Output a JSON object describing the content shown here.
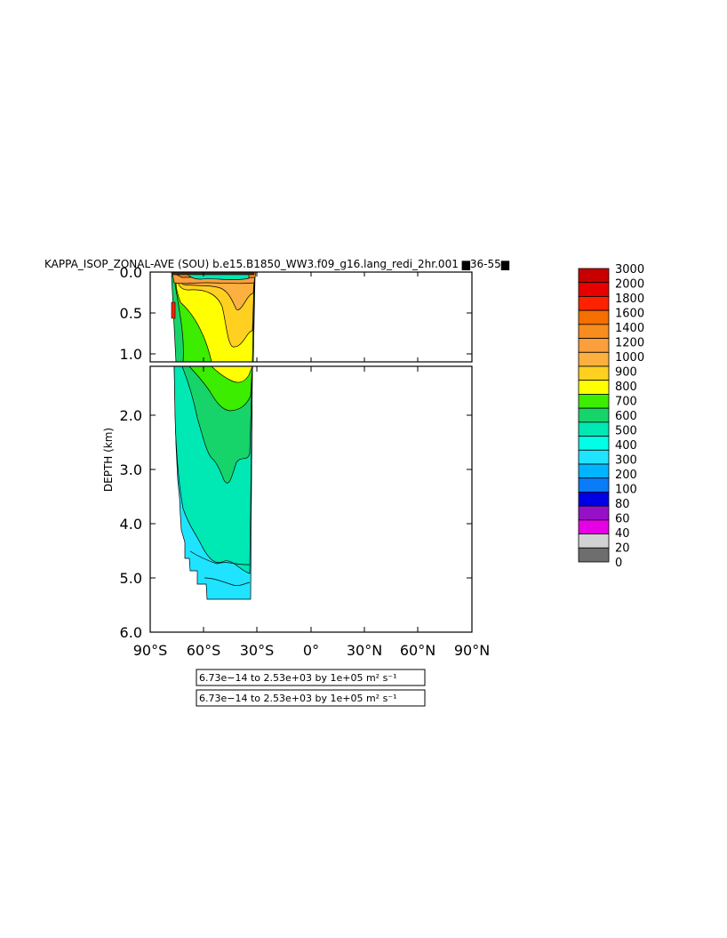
{
  "chart_data": {
    "type": "heatmap",
    "title": "KAPPA_ISOP_ZONAL-AVE (SOU) b.e15.B1850_WW3.f09_g16.lang_redi_2hr.001 ▆36-55▆",
    "ylabel": "DEPTH (km)",
    "xlabel": "",
    "x_ticks": [
      "90°S",
      "60°S",
      "30°S",
      "0°",
      "30°N",
      "60°N",
      "90°N"
    ],
    "x_tick_values": [
      -90,
      -60,
      -30,
      0,
      30,
      60,
      90
    ],
    "y_ticks_upper": [
      "0.0",
      "0.5",
      "1.0"
    ],
    "y_ticks_upper_values": [
      0.0,
      0.5,
      1.0
    ],
    "y_ticks_lower": [
      "2.0",
      "3.0",
      "4.0",
      "5.0",
      "6.0"
    ],
    "y_ticks_lower_values": [
      2.0,
      3.0,
      4.0,
      5.0,
      6.0
    ],
    "xlim": [
      -90,
      90
    ],
    "ylim_upper": [
      0.0,
      1.1
    ],
    "ylim_lower": [
      1.1,
      6.0
    ],
    "grid": false,
    "colorbar": {
      "labels": [
        "3000",
        "2000",
        "1800",
        "1600",
        "1400",
        "1200",
        "1000",
        "900",
        "800",
        "700",
        "600",
        "500",
        "400",
        "300",
        "200",
        "100",
        "80",
        "60",
        "40",
        "20",
        "0"
      ],
      "colors": [
        "#c80000",
        "#e60000",
        "#ff2200",
        "#f46e00",
        "#f88c1c",
        "#fb9e3c",
        "#fcb040",
        "#ffd020",
        "#ffff00",
        "#3ced00",
        "#16d46a",
        "#00e8b4",
        "#00ffe6",
        "#20e4ff",
        "#00b4ff",
        "#0a7cf8",
        "#0000e6",
        "#9610c8",
        "#e600e6",
        "#d2d2d2",
        "#6e6e6e"
      ]
    },
    "series": [
      {
        "name": "",
        "region_lat_range": [
          -78,
          -34
        ],
        "values_by_depth": [
          {
            "depth_km": 0.0,
            "lat": [
              -78,
              -70,
              -60,
              -50,
              -40,
              -34
            ],
            "kappa": [
              1800,
              1500,
              1400,
              1200,
              1000,
              900
            ]
          },
          {
            "depth_km": 0.25,
            "lat": [
              -78,
              -70,
              -60,
              -50,
              -45,
              -40,
              -34
            ],
            "kappa": [
              1400,
              1200,
              1000,
              1000,
              800,
              900,
              1000
            ]
          },
          {
            "depth_km": 0.5,
            "lat": [
              -78,
              -70,
              -60,
              -50,
              -45,
              -40,
              -34
            ],
            "kappa": [
              800,
              900,
              800,
              1000,
              900,
              900,
              1000
            ]
          },
          {
            "depth_km": 1.0,
            "lat": [
              -78,
              -70,
              -60,
              -50,
              -45,
              -40,
              -34
            ],
            "kappa": [
              700,
              700,
              800,
              800,
              900,
              1000,
              800
            ]
          },
          {
            "depth_km": 1.5,
            "lat": [
              -78,
              -70,
              -60,
              -50,
              -45,
              -40,
              -34
            ],
            "kappa": [
              600,
              700,
              700,
              800,
              800,
              900,
              700
            ]
          },
          {
            "depth_km": 2.0,
            "lat": [
              -78,
              -70,
              -60,
              -50,
              -45,
              -40,
              -34
            ],
            "kappa": [
              500,
              600,
              700,
              700,
              700,
              700,
              700
            ]
          },
          {
            "depth_km": 3.0,
            "lat": [
              -78,
              -70,
              -60,
              -50,
              -45,
              -40,
              -34
            ],
            "kappa": [
              500,
              500,
              500,
              600,
              600,
              600,
              600
            ]
          },
          {
            "depth_km": 4.0,
            "lat": [
              -78,
              -70,
              -60,
              -50,
              -40,
              -34
            ],
            "kappa": [
              400,
              500,
              500,
              500,
              500,
              500
            ]
          },
          {
            "depth_km": 5.0,
            "lat": [
              -70,
              -60,
              -50,
              -40,
              -34
            ],
            "kappa": [
              400,
              400,
              400,
              400,
              400
            ]
          }
        ]
      }
    ],
    "info_boxes": [
      "6.73e−14 to 2.53e+03 by 1e+05 m² s⁻¹",
      "6.73e−14 to 2.53e+03 by 1e+05 m² s⁻¹"
    ]
  }
}
